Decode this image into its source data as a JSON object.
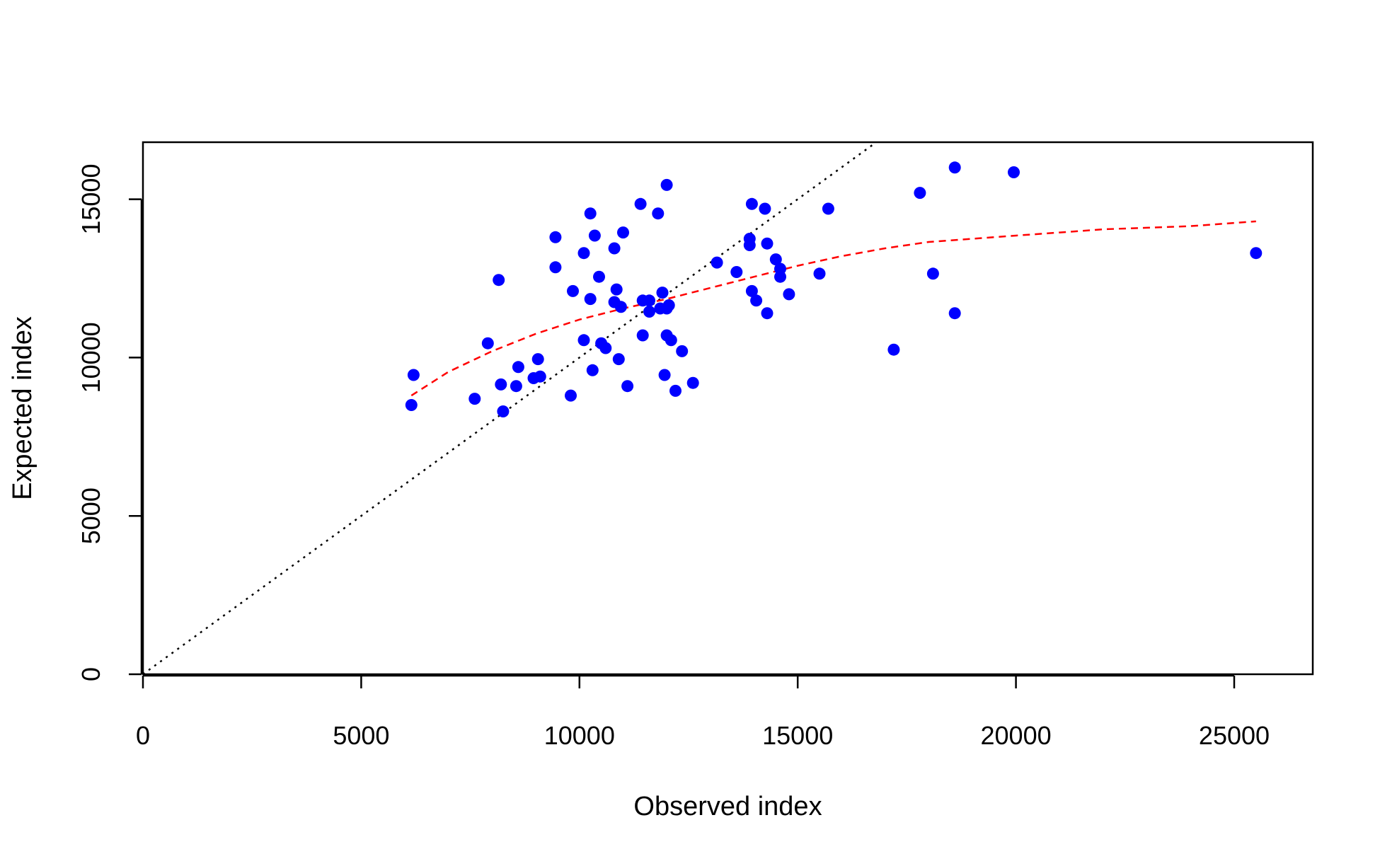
{
  "chart_data": {
    "type": "scatter",
    "xlabel": "Observed index",
    "ylabel": "Expected index",
    "xlim": [
      0,
      26800
    ],
    "ylim": [
      0,
      16800
    ],
    "xticks": [
      0,
      5000,
      10000,
      15000,
      20000,
      25000
    ],
    "yticks": [
      0,
      5000,
      10000,
      15000
    ],
    "grid": false,
    "legend": "none",
    "point_color": "#0000FF",
    "series": [
      {
        "x": [
          6200,
          6150,
          7600,
          7900,
          8150,
          8200,
          8250,
          8550,
          8600,
          8950,
          9050,
          9100,
          9450,
          9450,
          9800,
          9850,
          10100,
          10100,
          10250,
          10250,
          10300,
          10350,
          10450,
          10500,
          10600,
          10800,
          10800,
          10850,
          10900,
          10950,
          11000,
          11100,
          11400,
          11450,
          11450,
          11600,
          11600,
          11800,
          11850,
          11900,
          11950,
          12000,
          12000,
          12000,
          12050,
          12100,
          12200,
          12350,
          12600,
          13150,
          13600,
          13900,
          13900,
          13950,
          13950,
          14050,
          14250,
          14300,
          14300,
          14500,
          14600,
          14600,
          14800,
          15500,
          15700,
          17200,
          17800,
          18100,
          18600,
          18600,
          19950,
          25500
        ],
        "y": [
          9450,
          8500,
          8700,
          10450,
          12450,
          9150,
          8300,
          9100,
          9700,
          9350,
          9950,
          9400,
          12850,
          13800,
          8800,
          12100,
          13300,
          10550,
          14550,
          11850,
          9600,
          13850,
          12550,
          10450,
          10300,
          13450,
          11750,
          12150,
          9950,
          11600,
          13950,
          9100,
          14850,
          10700,
          11800,
          11800,
          11450,
          14550,
          11550,
          12050,
          9450,
          15450,
          11550,
          10700,
          11650,
          10550,
          8950,
          10200,
          9200,
          13000,
          12700,
          13750,
          13550,
          14850,
          12100,
          11800,
          14700,
          13600,
          11400,
          13100,
          12800,
          12550,
          12000,
          12650,
          14700,
          10250,
          15200,
          12650,
          16000,
          11400,
          15850,
          13300
        ]
      }
    ],
    "reference_line": {
      "x": [
        0,
        16750
      ],
      "y": [
        0,
        16750
      ],
      "color": "#000000",
      "style": "dotted"
    },
    "smooth_line": {
      "color": "#FF0000",
      "style": "dashed",
      "x": [
        6150,
        7000,
        8000,
        9000,
        10000,
        11000,
        12000,
        13000,
        14000,
        15000,
        16000,
        17000,
        18000,
        19000,
        20000,
        21000,
        22000,
        23000,
        24000,
        25500
      ],
      "y": [
        8800,
        9550,
        10200,
        10750,
        11200,
        11550,
        11850,
        12200,
        12550,
        12900,
        13200,
        13450,
        13650,
        13750,
        13850,
        13950,
        14050,
        14100,
        14150,
        14300
      ]
    }
  }
}
